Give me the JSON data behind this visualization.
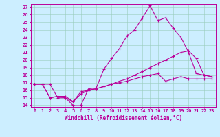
{
  "title": "",
  "xlabel": "Windchill (Refroidissement éolien,°C)",
  "ylabel": "",
  "bg_color": "#cceeff",
  "line_color": "#bb0099",
  "grid_color": "#99ccbb",
  "xlim": [
    -0.5,
    23.5
  ],
  "ylim": [
    13.8,
    27.4
  ],
  "xticks": [
    0,
    1,
    2,
    3,
    4,
    5,
    6,
    7,
    8,
    9,
    10,
    11,
    12,
    13,
    14,
    15,
    16,
    17,
    18,
    19,
    20,
    21,
    22,
    23
  ],
  "yticks": [
    14,
    15,
    16,
    17,
    18,
    19,
    20,
    21,
    22,
    23,
    24,
    25,
    26,
    27
  ],
  "line1_x": [
    0,
    1,
    2,
    3,
    4,
    5,
    6,
    7,
    8,
    9,
    10,
    11,
    12,
    13,
    14,
    15,
    16,
    17,
    18,
    19,
    20,
    21,
    22,
    23
  ],
  "line1_y": [
    16.8,
    16.8,
    16.8,
    15.0,
    15.0,
    14.0,
    14.0,
    16.2,
    16.3,
    18.8,
    20.2,
    21.5,
    23.2,
    24.0,
    25.6,
    27.2,
    25.2,
    25.6,
    24.2,
    23.0,
    21.0,
    18.2,
    18.0,
    17.8
  ],
  "line2_x": [
    0,
    1,
    2,
    3,
    4,
    5,
    6,
    7,
    8,
    9,
    10,
    11,
    12,
    13,
    14,
    15,
    16,
    17,
    18,
    19,
    20,
    21,
    22,
    23
  ],
  "line2_y": [
    16.8,
    16.8,
    15.0,
    15.2,
    15.0,
    14.5,
    15.5,
    16.0,
    16.2,
    16.5,
    16.8,
    17.2,
    17.5,
    18.0,
    18.5,
    19.0,
    19.5,
    20.0,
    20.5,
    21.0,
    21.2,
    20.2,
    18.0,
    17.8
  ],
  "line3_x": [
    0,
    1,
    2,
    3,
    4,
    5,
    6,
    7,
    8,
    9,
    10,
    11,
    12,
    13,
    14,
    15,
    16,
    17,
    18,
    19,
    20,
    21,
    22,
    23
  ],
  "line3_y": [
    16.8,
    16.8,
    15.0,
    15.2,
    15.2,
    14.5,
    15.8,
    16.0,
    16.2,
    16.5,
    16.8,
    17.0,
    17.2,
    17.5,
    17.8,
    18.0,
    18.2,
    17.2,
    17.5,
    17.8,
    17.5,
    17.5,
    17.5,
    17.5
  ],
  "xlabel_fontsize": 5.5,
  "tick_fontsize": 5.0
}
